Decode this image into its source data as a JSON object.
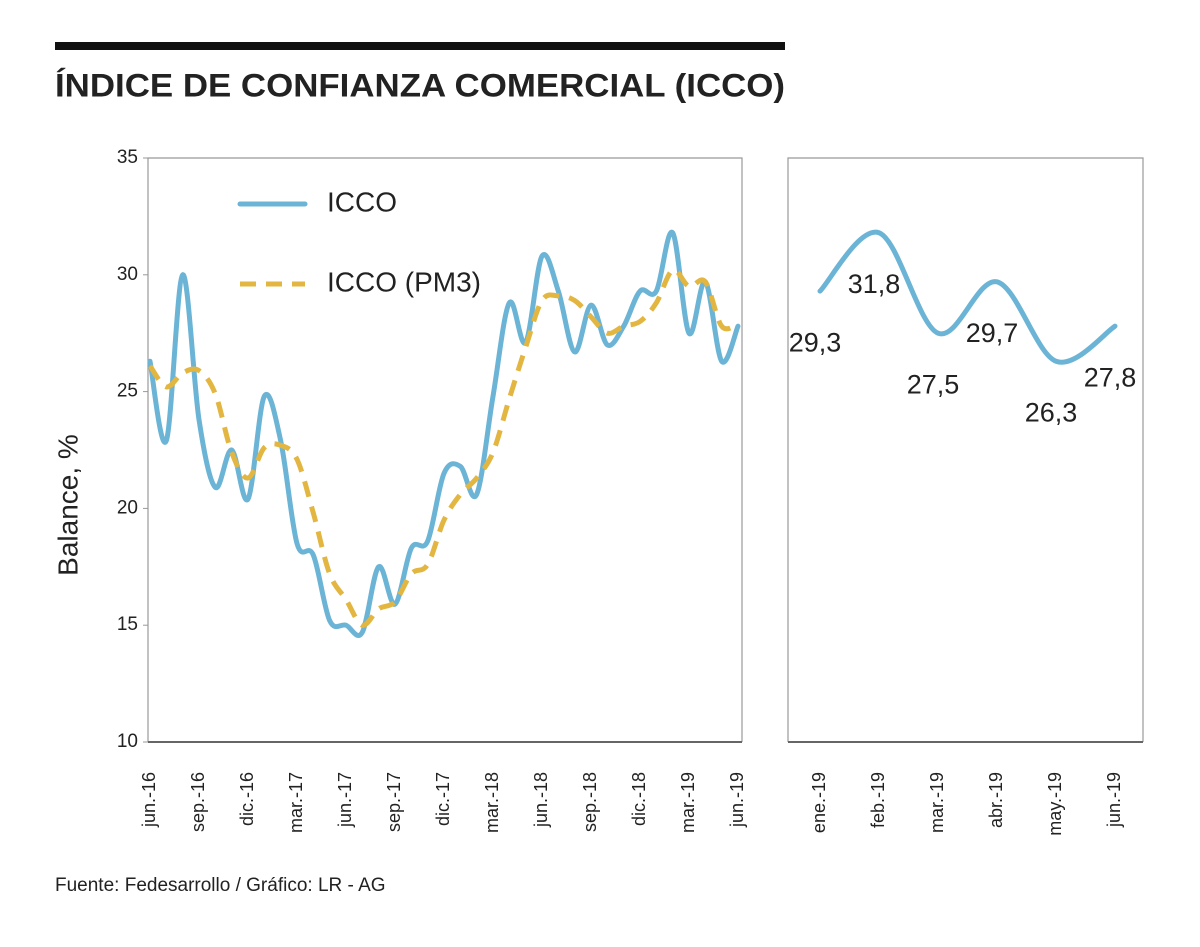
{
  "title": "ÍNDICE DE CONFIANZA COMERCIAL (ICCO)",
  "source": "Fuente: Fedesarrollo / Gráfico: LR - AG",
  "chart_data": [
    {
      "type": "line",
      "ylabel": "Balance, %",
      "categories": [
        "jun.-16",
        null,
        null,
        "sep.-16",
        null,
        null,
        "dic.-16",
        null,
        null,
        "mar.-17",
        null,
        null,
        "jun.-17",
        null,
        null,
        "sep.-17",
        null,
        null,
        "dic.-17",
        null,
        null,
        "mar.-18",
        null,
        null,
        "jun.-18",
        null,
        null,
        "sep.-18",
        null,
        null,
        "dic.-18",
        null,
        null,
        "mar.-19",
        null,
        null,
        "jun.-19"
      ],
      "series": [
        {
          "name": "ICCO",
          "color": "#6cb4d6",
          "dashed": false,
          "values": [
            26.3,
            22.9,
            30.0,
            23.8,
            20.9,
            22.5,
            20.4,
            24.8,
            22.9,
            18.5,
            18.0,
            15.2,
            15.0,
            14.7,
            17.5,
            15.9,
            18.3,
            18.6,
            21.5,
            21.8,
            20.6,
            24.8,
            28.8,
            27.1,
            30.8,
            29.3,
            26.7,
            28.7,
            27.0,
            27.8,
            29.3,
            29.3,
            31.8,
            27.5,
            29.7,
            26.3,
            27.8
          ]
        },
        {
          "name": "ICCO (PM3)",
          "color": "#e2b641",
          "dashed": true,
          "values": [
            26.1,
            25.2,
            25.8,
            25.9,
            24.9,
            22.4,
            21.3,
            22.6,
            22.7,
            22.1,
            19.8,
            17.2,
            16.1,
            15.0,
            15.7,
            16.0,
            17.2,
            17.6,
            19.5,
            20.6,
            21.3,
            22.4,
            24.7,
            26.9,
            28.9,
            29.1,
            28.9,
            28.2,
            27.5,
            27.8,
            28.0,
            28.8,
            30.2,
            29.5,
            29.7,
            27.8,
            27.9
          ]
        }
      ],
      "ylim": [
        10,
        35
      ],
      "yticks": [
        10,
        15,
        20,
        25,
        30,
        35
      ],
      "legend": "upper left"
    },
    {
      "type": "line",
      "categories": [
        "ene.-19",
        "feb.-19",
        "mar.-19",
        "abr.-19",
        "may.-19",
        "jun.-19"
      ],
      "values": [
        29.3,
        31.8,
        27.5,
        29.7,
        26.3,
        27.8
      ],
      "value_labels": [
        "29,3",
        "31,8",
        "27,5",
        "29,7",
        "26,3",
        "27,8"
      ],
      "color": "#6cb4d6",
      "ylim": [
        10,
        35
      ]
    }
  ]
}
